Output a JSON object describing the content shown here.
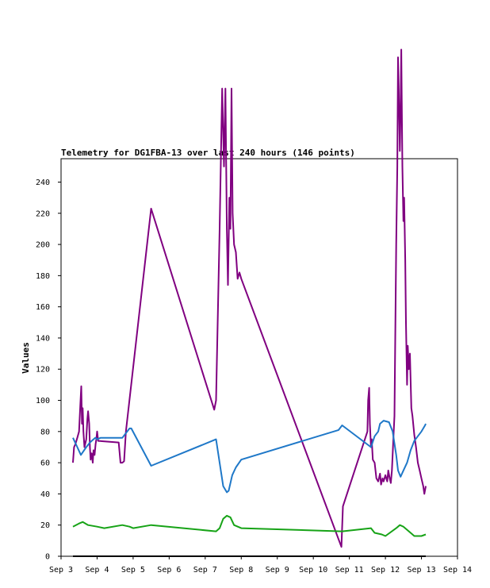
{
  "chart_data": {
    "type": "line",
    "title": "Telemetry for DG1FBA-13 over last 240 hours (146 points)",
    "xlabel": "",
    "ylabel": "Values",
    "x_tick_labels": [
      "Sep 3",
      "Sep 4",
      "Sep 5",
      "Sep 6",
      "Sep 7",
      "Sep 8",
      "Sep 9",
      "Sep 10",
      "Sep 11",
      "Sep 12",
      "Sep 13",
      "Sep 14"
    ],
    "x_range_days": [
      3,
      14
    ],
    "y_ticks": [
      0,
      20,
      40,
      60,
      80,
      100,
      120,
      140,
      160,
      180,
      200,
      220,
      240
    ],
    "ylim": [
      0,
      255
    ],
    "grid": false,
    "series": [
      {
        "color": "#800080",
        "points": [
          [
            3.33,
            60
          ],
          [
            3.36,
            70
          ],
          [
            3.4,
            72
          ],
          [
            3.45,
            76
          ],
          [
            3.5,
            80
          ],
          [
            3.53,
            95
          ],
          [
            3.56,
            109
          ],
          [
            3.58,
            85
          ],
          [
            3.6,
            95
          ],
          [
            3.62,
            80
          ],
          [
            3.65,
            70
          ],
          [
            3.7,
            75
          ],
          [
            3.73,
            88
          ],
          [
            3.75,
            93
          ],
          [
            3.78,
            85
          ],
          [
            3.8,
            70
          ],
          [
            3.82,
            62
          ],
          [
            3.85,
            66
          ],
          [
            3.88,
            60
          ],
          [
            3.9,
            68
          ],
          [
            3.93,
            65
          ],
          [
            3.96,
            72
          ],
          [
            3.98,
            75
          ],
          [
            4.0,
            80
          ],
          [
            4.03,
            74
          ],
          [
            4.6,
            73
          ],
          [
            4.65,
            60
          ],
          [
            4.7,
            60
          ],
          [
            4.75,
            61
          ],
          [
            4.8,
            80
          ],
          [
            5.5,
            223
          ],
          [
            7.25,
            94
          ],
          [
            7.3,
            100
          ],
          [
            7.4,
            210
          ],
          [
            7.47,
            300
          ],
          [
            7.52,
            250
          ],
          [
            7.56,
            300
          ],
          [
            7.6,
            210
          ],
          [
            7.63,
            174
          ],
          [
            7.67,
            230
          ],
          [
            7.7,
            210
          ],
          [
            7.73,
            300
          ],
          [
            7.76,
            220
          ],
          [
            7.8,
            200
          ],
          [
            7.85,
            195
          ],
          [
            7.9,
            178
          ],
          [
            7.95,
            182
          ],
          [
            8.0,
            178
          ],
          [
            10.78,
            6
          ],
          [
            10.82,
            32
          ],
          [
            11.5,
            80
          ],
          [
            11.52,
            100
          ],
          [
            11.55,
            108
          ],
          [
            11.57,
            85
          ],
          [
            11.6,
            70
          ],
          [
            11.62,
            75
          ],
          [
            11.65,
            62
          ],
          [
            11.7,
            60
          ],
          [
            11.75,
            50
          ],
          [
            11.8,
            48
          ],
          [
            11.85,
            53
          ],
          [
            11.88,
            46
          ],
          [
            11.92,
            50
          ],
          [
            11.95,
            48
          ],
          [
            12.0,
            52
          ],
          [
            12.05,
            48
          ],
          [
            12.08,
            55
          ],
          [
            12.12,
            50
          ],
          [
            12.15,
            47
          ],
          [
            12.18,
            55
          ],
          [
            12.22,
            75
          ],
          [
            12.25,
            90
          ],
          [
            12.3,
            200
          ],
          [
            12.33,
            250
          ],
          [
            12.35,
            320
          ],
          [
            12.37,
            300
          ],
          [
            12.4,
            260
          ],
          [
            12.42,
            285
          ],
          [
            12.44,
            325
          ],
          [
            12.47,
            250
          ],
          [
            12.5,
            215
          ],
          [
            12.52,
            230
          ],
          [
            12.55,
            190
          ],
          [
            12.57,
            150
          ],
          [
            12.6,
            110
          ],
          [
            12.62,
            135
          ],
          [
            12.65,
            120
          ],
          [
            12.68,
            130
          ],
          [
            12.72,
            95
          ],
          [
            12.75,
            90
          ],
          [
            12.8,
            78
          ],
          [
            12.85,
            70
          ],
          [
            12.9,
            60
          ],
          [
            12.95,
            55
          ],
          [
            13.0,
            50
          ],
          [
            13.05,
            45
          ],
          [
            13.08,
            40
          ],
          [
            13.12,
            45
          ]
        ]
      },
      {
        "color": "#1f78c8",
        "points": [
          [
            3.33,
            76
          ],
          [
            3.45,
            70
          ],
          [
            3.55,
            65
          ],
          [
            3.7,
            70
          ],
          [
            3.8,
            73
          ],
          [
            3.9,
            75
          ],
          [
            3.95,
            76
          ],
          [
            4.0,
            75
          ],
          [
            4.1,
            76
          ],
          [
            4.3,
            76
          ],
          [
            4.7,
            76
          ],
          [
            4.9,
            82
          ],
          [
            4.95,
            82
          ],
          [
            5.5,
            58
          ],
          [
            7.3,
            75
          ],
          [
            7.4,
            60
          ],
          [
            7.5,
            45
          ],
          [
            7.6,
            41
          ],
          [
            7.65,
            42
          ],
          [
            7.75,
            52
          ],
          [
            7.85,
            57
          ],
          [
            8.0,
            62
          ],
          [
            10.7,
            81
          ],
          [
            10.8,
            84
          ],
          [
            11.6,
            70
          ],
          [
            11.7,
            77
          ],
          [
            11.8,
            80
          ],
          [
            11.85,
            85
          ],
          [
            11.95,
            87
          ],
          [
            12.1,
            86
          ],
          [
            12.2,
            80
          ],
          [
            12.3,
            65
          ],
          [
            12.35,
            55
          ],
          [
            12.42,
            51
          ],
          [
            12.5,
            55
          ],
          [
            12.6,
            60
          ],
          [
            12.7,
            68
          ],
          [
            12.8,
            74
          ],
          [
            12.9,
            77
          ],
          [
            13.0,
            80
          ],
          [
            13.1,
            84
          ],
          [
            13.12,
            85
          ]
        ]
      },
      {
        "color": "#17a317",
        "points": [
          [
            3.33,
            19
          ],
          [
            3.5,
            21
          ],
          [
            3.6,
            22
          ],
          [
            3.75,
            20
          ],
          [
            4.0,
            19
          ],
          [
            4.2,
            18
          ],
          [
            4.7,
            20
          ],
          [
            4.9,
            19
          ],
          [
            5.0,
            18
          ],
          [
            5.5,
            20
          ],
          [
            7.3,
            16
          ],
          [
            7.4,
            18
          ],
          [
            7.5,
            24
          ],
          [
            7.6,
            26
          ],
          [
            7.7,
            25
          ],
          [
            7.8,
            20
          ],
          [
            8.0,
            18
          ],
          [
            10.8,
            16
          ],
          [
            11.6,
            18
          ],
          [
            11.7,
            15
          ],
          [
            11.9,
            14
          ],
          [
            12.0,
            13
          ],
          [
            12.3,
            18
          ],
          [
            12.4,
            20
          ],
          [
            12.5,
            19
          ],
          [
            12.7,
            15
          ],
          [
            12.8,
            13
          ],
          [
            13.0,
            13
          ],
          [
            13.12,
            14
          ]
        ]
      },
      {
        "color": "#000000",
        "points": [
          [
            3.33,
            0
          ],
          [
            13.12,
            0
          ]
        ]
      }
    ]
  }
}
